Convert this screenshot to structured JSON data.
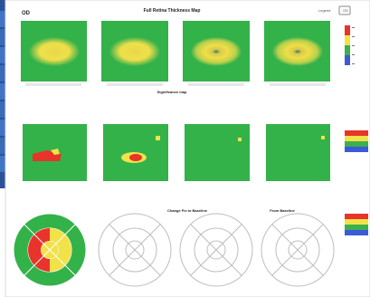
{
  "report": {
    "eye_label": "OD",
    "title_top": "Full Retina Thickness Map",
    "title_middle": "Significance map",
    "title_bottom_1": "Change Fix to Baseline",
    "title_bottom_2": "From Baseline",
    "top_right_label": "Legend",
    "top_right_value": "OD"
  },
  "colors": {
    "green": "#33b24a",
    "yellow": "#f2e24a",
    "red": "#e8342a",
    "blue": "#3a5bd9",
    "panel_bg": "#ffffff",
    "sidebar_blue": "#2f5aa6"
  },
  "panels": {
    "row1_captions": [
      "",
      "",
      "",
      ""
    ]
  }
}
